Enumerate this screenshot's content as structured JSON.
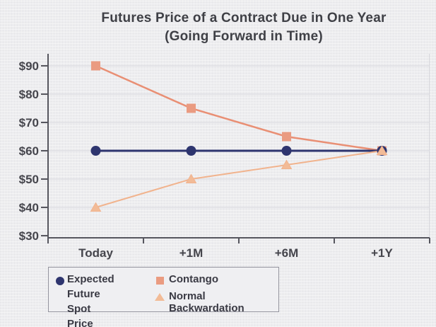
{
  "title": {
    "line1": "Futures Price of a Contract Due in One Year",
    "line2": "(Going Forward in Time)"
  },
  "chart_data": {
    "type": "line",
    "title": "Futures Price of a Contract Due in One Year (Going Forward in Time)",
    "categories": [
      "Today",
      "+1M",
      "+6M",
      "+1Y"
    ],
    "series": [
      {
        "name": "Contango",
        "marker": "square",
        "line_color": "#e98f74",
        "marker_fill": "#ea9b81",
        "values": [
          90,
          75,
          65,
          60
        ],
        "line_width": 2.5
      },
      {
        "name": "Expected Future Spot Price",
        "marker": "circle",
        "line_color": "#2e356f",
        "marker_fill": "#2e356f",
        "values": [
          60,
          60,
          60,
          60
        ],
        "line_width": 3
      },
      {
        "name": "Normal Backwardation",
        "marker": "triangle",
        "line_color": "#f1b38d",
        "marker_fill": "#f2bb97",
        "values": [
          40,
          50,
          55,
          60
        ],
        "line_width": 2
      }
    ],
    "y_axis": {
      "tick_values": [
        90,
        80,
        70,
        60,
        50,
        40,
        30
      ],
      "tick_labels": [
        "$90",
        "$80",
        "$70",
        "$60",
        "$50",
        "$40",
        "$30"
      ],
      "min": 30,
      "max": 90
    },
    "grid": true,
    "legend_position": "bottom-left"
  },
  "legend": {
    "items": [
      {
        "label_line1": "Expected Future",
        "label_line2": "Spot Price",
        "marker": "circle",
        "color": "#2e356f"
      },
      {
        "label_line1": "Contango",
        "marker": "square",
        "color": "#ea9b81"
      },
      {
        "label_line1": "Normal Backwardation",
        "marker": "triangle",
        "color": "#f2bb97"
      }
    ]
  },
  "colors": {
    "background": "#ededef",
    "title_text": "#3f4046",
    "axis_line": "#56565e",
    "tick_text": "#45454c",
    "gridline": "#d8d8dd",
    "navy": "#2e356f",
    "salmon": "#e98f74",
    "peach": "#f2bb97",
    "legend_border": "#94949e"
  }
}
